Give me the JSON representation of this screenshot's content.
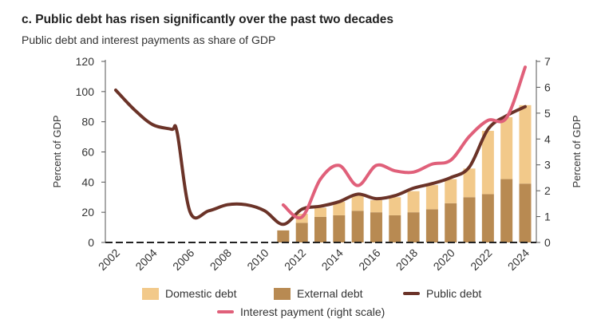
{
  "chart_data": {
    "type": "bar+line",
    "title": "c. Public debt has risen significantly over the past two decades",
    "subtitle": "Public debt and interest payments as share of GDP",
    "ylabel": "Percent of GDP",
    "y2label": "Percent of GDP",
    "ylim": [
      0,
      120
    ],
    "y2lim": [
      0,
      7
    ],
    "yticks": [
      0,
      20,
      40,
      60,
      80,
      100,
      120
    ],
    "y2ticks": [
      0,
      1,
      2,
      3,
      4,
      5,
      6,
      7
    ],
    "xticks": [
      "2002",
      "2004",
      "2006",
      "2008",
      "2010",
      "2012",
      "2014",
      "2016",
      "2018",
      "2020",
      "2022",
      "2024"
    ],
    "grid": false,
    "legend_position": "bottom",
    "colors": {
      "domestic": "#f2c98a",
      "external": "#b88a52",
      "public": "#6b3328",
      "interest": "#e0607a"
    },
    "bars": {
      "x": [
        2011,
        2012,
        2013,
        2014,
        2015,
        2016,
        2017,
        2018,
        2019,
        2020,
        2021,
        2022,
        2023,
        2024
      ],
      "series": [
        {
          "name": "External debt",
          "values": [
            8,
            13,
            17,
            18,
            21,
            20,
            18,
            20,
            22,
            26,
            30,
            32,
            42,
            39
          ]
        },
        {
          "name": "Domestic debt",
          "values": [
            0,
            6,
            6,
            9,
            10,
            8,
            12,
            14,
            16,
            16,
            19,
            42,
            41,
            52
          ]
        }
      ]
    },
    "lines": [
      {
        "name": "Public debt",
        "axis": "left",
        "x": [
          2002,
          2003,
          2004,
          2005,
          2005.3,
          2006,
          2007,
          2008,
          2009,
          2010,
          2011,
          2012,
          2013,
          2014,
          2015,
          2016,
          2017,
          2018,
          2019,
          2020,
          2021,
          2022,
          2023,
          2024
        ],
        "values": [
          101,
          88,
          78,
          75,
          73,
          20,
          21,
          25,
          25,
          21,
          12,
          22,
          24,
          27,
          32,
          29,
          31,
          36,
          39,
          43,
          50,
          75,
          84,
          90
        ]
      },
      {
        "name": "Interest payment (right scale)",
        "axis": "right",
        "x": [
          2011,
          2012,
          2013,
          2014,
          2015,
          2016,
          2017,
          2018,
          2019,
          2020,
          2021,
          2022,
          2023,
          2024
        ],
        "values": [
          1.45,
          0.98,
          2.45,
          2.98,
          2.2,
          2.98,
          2.77,
          2.72,
          3.03,
          3.18,
          4.1,
          4.72,
          4.82,
          6.78
        ]
      }
    ]
  },
  "legend": {
    "domestic": "Domestic debt",
    "external": "External debt",
    "public": "Public debt",
    "interest": "Interest payment (right scale)"
  }
}
